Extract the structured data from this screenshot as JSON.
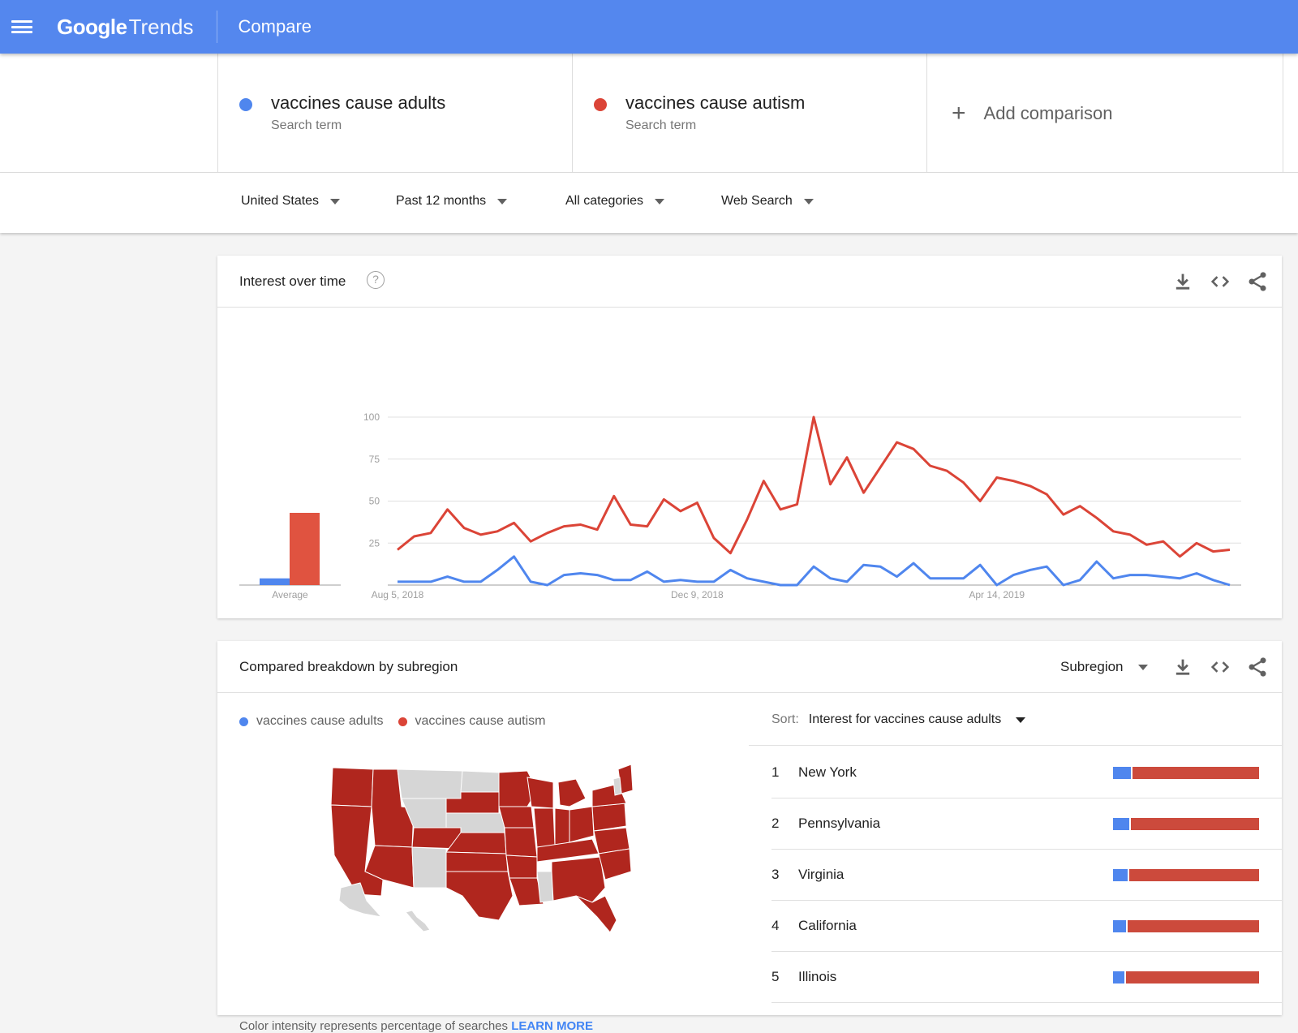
{
  "header": {
    "logo_google": "Google",
    "logo_trends": "Trends",
    "page_title": "Compare"
  },
  "terms": [
    {
      "name": "vaccines cause adults",
      "sub": "Search term",
      "color": "#4f86ee"
    },
    {
      "name": "vaccines cause autism",
      "sub": "Search term",
      "color": "#db4437"
    }
  ],
  "add_comparison": "Add comparison",
  "filters": {
    "region": "United States",
    "time": "Past 12 months",
    "category": "All categories",
    "search_type": "Web Search"
  },
  "interest_card": {
    "title": "Interest over time",
    "help": "?"
  },
  "chart_data": {
    "type": "line",
    "title": "",
    "y_ticks": [
      "100",
      "75",
      "50",
      "25"
    ],
    "ylim": [
      0,
      100
    ],
    "x_tick_labels": [
      "Aug 5, 2018",
      "Dec 9, 2018",
      "Apr 14, 2019"
    ],
    "x_tick_index": [
      0,
      18,
      36
    ],
    "average_label": "Average",
    "averages": [
      4,
      43
    ],
    "series": [
      {
        "name": "vaccines cause adults",
        "color": "#4f86ee",
        "values": [
          2,
          2,
          2,
          5,
          2,
          2,
          9,
          17,
          2,
          0,
          6,
          7,
          6,
          3,
          3,
          8,
          2,
          3,
          2,
          2,
          9,
          4,
          2,
          0,
          0,
          11,
          4,
          2,
          12,
          11,
          5,
          13,
          4,
          4,
          4,
          12,
          0,
          6,
          9,
          11,
          0,
          3,
          14,
          4,
          6,
          6,
          5,
          4,
          7,
          3,
          0
        ]
      },
      {
        "name": "vaccines cause autism",
        "color": "#db4437",
        "values": [
          21,
          29,
          31,
          45,
          34,
          30,
          32,
          37,
          26,
          31,
          35,
          36,
          33,
          53,
          36,
          35,
          51,
          44,
          49,
          28,
          19,
          39,
          62,
          45,
          48,
          100,
          60,
          76,
          55,
          70,
          85,
          81,
          71,
          68,
          61,
          50,
          64,
          62,
          59,
          54,
          42,
          47,
          40,
          32,
          30,
          24,
          26,
          17,
          25,
          20,
          21
        ]
      }
    ]
  },
  "breakdown_card": {
    "title": "Compared breakdown by subregion",
    "view_select": "Subregion",
    "legend": [
      "vaccines cause adults",
      "vaccines cause autism"
    ],
    "sort_label": "Sort:",
    "sort_value": "Interest for vaccines cause adults",
    "rows": [
      {
        "rank": "1",
        "name": "New York",
        "blue_pct": 12
      },
      {
        "rank": "2",
        "name": "Pennsylvania",
        "blue_pct": 11
      },
      {
        "rank": "3",
        "name": "Virginia",
        "blue_pct": 10
      },
      {
        "rank": "4",
        "name": "California",
        "blue_pct": 9
      },
      {
        "rank": "5",
        "name": "Illinois",
        "blue_pct": 8
      }
    ],
    "note": "Color intensity represents percentage of searches",
    "learn_more": "LEARN MORE"
  },
  "colors": {
    "header_bg": "#5487ee",
    "blue": "#4f86ee",
    "red": "#db4437",
    "map_red": "#b0261e",
    "map_gray": "#d6d6d6"
  }
}
